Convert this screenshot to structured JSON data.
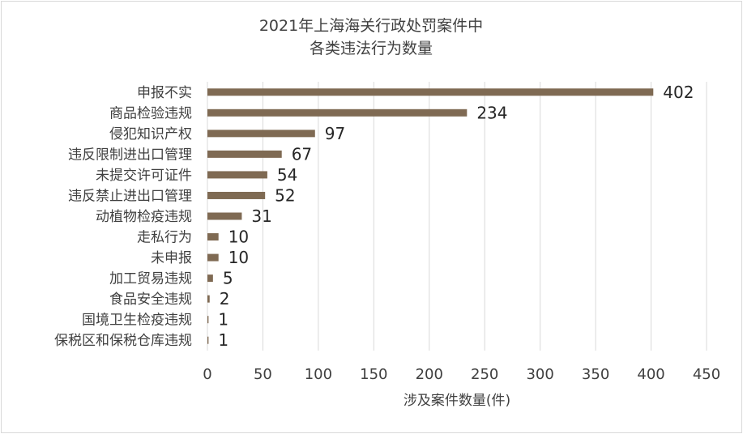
{
  "chart_data": {
    "type": "bar",
    "orientation": "horizontal",
    "title_lines": [
      "2021年上海海关行政处罚案件中",
      "各类违法行为数量"
    ],
    "xlabel": "涉及案件数量(件)",
    "ylabel": "",
    "xlim": [
      0,
      450
    ],
    "xticks": [
      0,
      50,
      100,
      150,
      200,
      250,
      300,
      350,
      400,
      450
    ],
    "grid": true,
    "legend": "none",
    "bar_color": "#7f6a53",
    "categories": [
      "申报不实",
      "商品检验违规",
      "侵犯知识产权",
      "违反限制进出口管理",
      "未提交许可证件",
      "违反禁止进出口管理",
      "动植物检疫违规",
      "走私行为",
      "未申报",
      "加工贸易违规",
      "食品安全违规",
      "国境卫生检疫违规",
      "保税区和保税仓库违规"
    ],
    "values": [
      402,
      234,
      97,
      67,
      54,
      52,
      31,
      10,
      10,
      5,
      2,
      1,
      1
    ],
    "value_labels": [
      "402",
      "234",
      "97",
      "67",
      "54",
      "52",
      "31",
      "10",
      "10",
      "5",
      "2",
      "1",
      "1"
    ]
  }
}
